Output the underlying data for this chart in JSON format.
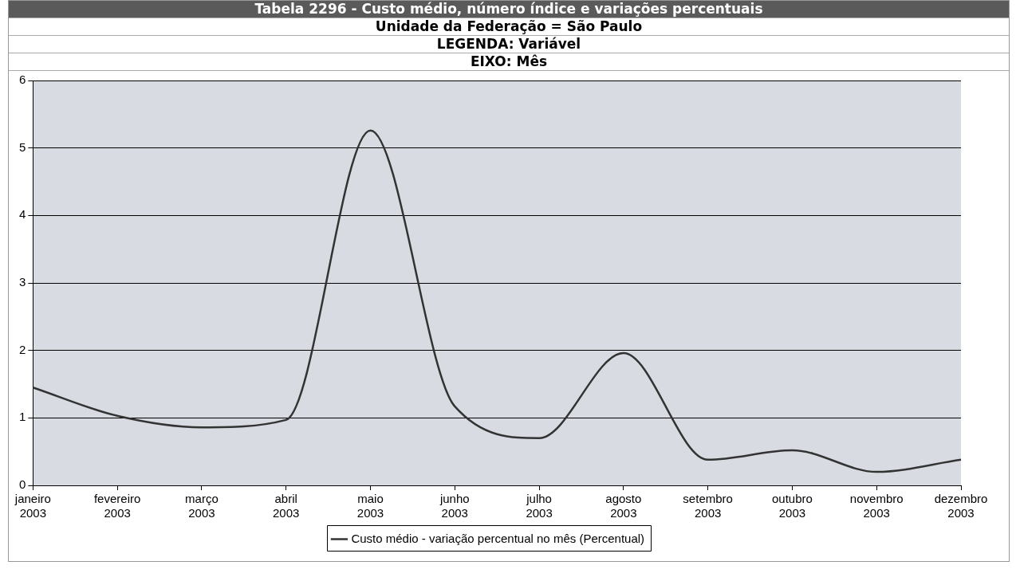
{
  "chart_data": {
    "type": "line",
    "title": "Tabela 2296 - Custo médio, número índice e variações percentuais",
    "subtitle": "Unidade da Federação = São Paulo",
    "annotations": [
      "LEGENDA: Variável",
      "EIXO: Mês"
    ],
    "categories": [
      "janeiro 2003",
      "fevereiro 2003",
      "março 2003",
      "abril 2003",
      "maio 2003",
      "junho 2003",
      "julho 2003",
      "agosto 2003",
      "setembro 2003",
      "outubro 2003",
      "novembro 2003",
      "dezembro 2003"
    ],
    "series": [
      {
        "name": "Custo médio - variação percentual no mês (Percentual)",
        "color": "#333333",
        "values": [
          1.45,
          1.03,
          0.86,
          0.97,
          5.26,
          1.17,
          0.7,
          1.96,
          0.38,
          0.52,
          0.2,
          0.38
        ]
      }
    ],
    "ylim": [
      0,
      6
    ],
    "yticks": [
      0,
      1,
      2,
      3,
      4,
      5,
      6
    ],
    "grid": "y",
    "legend": "bottom",
    "marker": "none",
    "line_style": "solid"
  }
}
